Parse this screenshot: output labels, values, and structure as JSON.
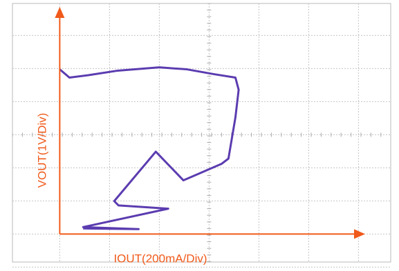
{
  "chart_data": {
    "type": "line",
    "x_label": "IOUT(200mA/Div)",
    "y_label": "VOUT(1V/Div)",
    "x": [
      0,
      39,
      122,
      233,
      400,
      511,
      622,
      706,
      719,
      706,
      678,
      650,
      497,
      386,
      219,
      236,
      436,
      94,
      317,
      94
    ],
    "series": [
      {
        "color": "#5b3cb0",
        "values": [
          5.0,
          4.75,
          4.83,
          4.96,
          5.06,
          5.0,
          4.85,
          4.75,
          4.38,
          3.54,
          2.29,
          2.13,
          1.63,
          2.5,
          1.0,
          0.87,
          0.77,
          0.21,
          0.15,
          0.17
        ]
      }
    ],
    "xlim": [
      -190,
      1330
    ],
    "ylim": [
      -0.85,
      7
    ],
    "axis_color": "#f05a1a"
  }
}
